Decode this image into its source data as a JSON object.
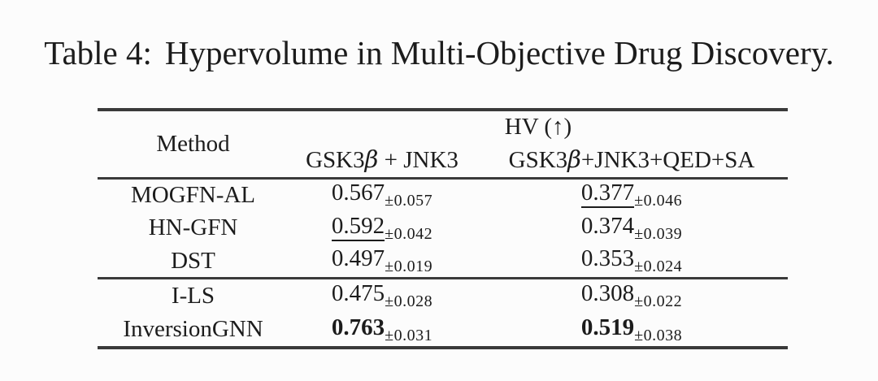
{
  "caption": {
    "label": "Table 4:",
    "text": "Hypervolume in Multi-Objective Drug Discovery."
  },
  "colors": {
    "bg": "#fcfcfc",
    "text": "#1c1c1c",
    "rule": "#3a3a3a"
  },
  "table": {
    "header": {
      "method_label": "Method",
      "hv_label": "HV (↑)",
      "col1": {
        "prefix": "GSK3",
        "beta": "β",
        "suffix": " + JNK3"
      },
      "col2": {
        "prefix": "GSK3",
        "beta": "β",
        "suffix": "+JNK3+QED+SA"
      }
    },
    "groups": [
      {
        "rows": [
          {
            "method": "MOGFN-AL",
            "v1": {
              "value": "0.567",
              "pm": "±0.057",
              "style": ""
            },
            "v2": {
              "value": "0.377",
              "pm": "±0.046",
              "style": "underline"
            }
          },
          {
            "method": "HN-GFN",
            "v1": {
              "value": "0.592",
              "pm": "±0.042",
              "style": "underline"
            },
            "v2": {
              "value": "0.374",
              "pm": "±0.039",
              "style": ""
            }
          },
          {
            "method": "DST",
            "v1": {
              "value": "0.497",
              "pm": "±0.019",
              "style": ""
            },
            "v2": {
              "value": "0.353",
              "pm": "±0.024",
              "style": ""
            }
          }
        ]
      },
      {
        "rows": [
          {
            "method": "I-LS",
            "v1": {
              "value": "0.475",
              "pm": "±0.028",
              "style": ""
            },
            "v2": {
              "value": "0.308",
              "pm": "±0.022",
              "style": ""
            }
          },
          {
            "method": "InversionGNN",
            "v1": {
              "value": "0.763",
              "pm": "±0.031",
              "style": "bold"
            },
            "v2": {
              "value": "0.519",
              "pm": "±0.038",
              "style": "bold"
            }
          }
        ]
      }
    ]
  }
}
